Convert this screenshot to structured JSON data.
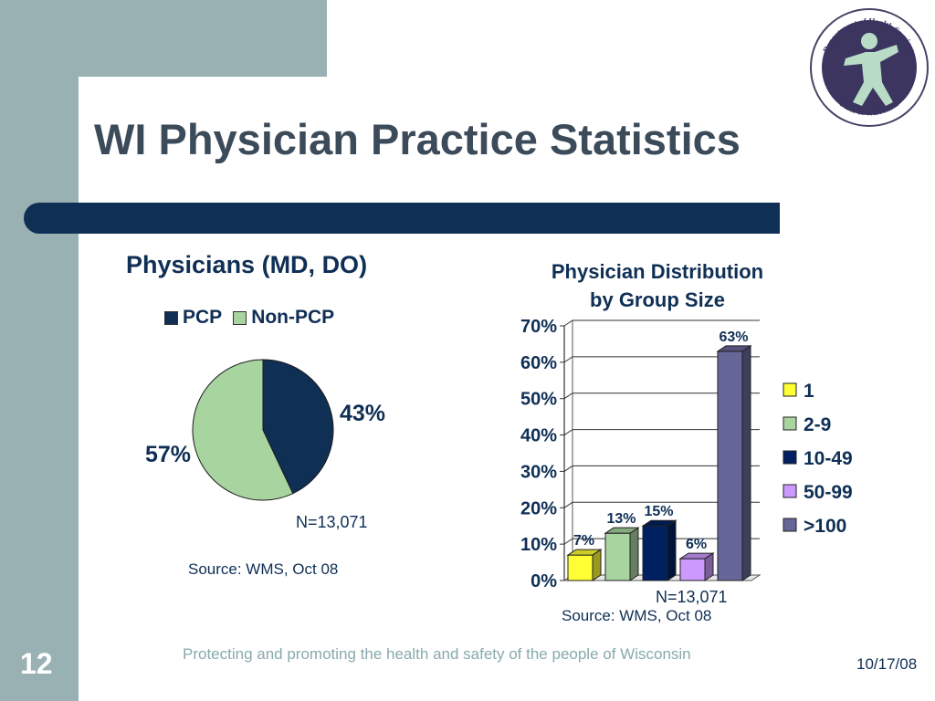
{
  "slide": {
    "title": "WI Physician Practice Statistics",
    "number": "12",
    "footer": "Protecting and promoting the health and safety of the people of Wisconsin",
    "date": "10/17/08"
  },
  "logo": {
    "top_text": "Department of Health Services",
    "bottom_text": "State of Wisconsin"
  },
  "pie": {
    "note": "N=13,071",
    "source": "Source: WMS, Oct 08"
  },
  "bar": {
    "note": "N=13,071",
    "source": "Source: WMS, Oct 08"
  },
  "colors": {
    "navy": "#0f2f55",
    "light_green": "#a8d4a0",
    "sidebar": "#99b1b3",
    "yellow": "#ffff33",
    "green": "#a8d4a0",
    "dark_navy": "#002060",
    "lavender": "#cc99ff",
    "slate_purple": "#666699"
  },
  "chart_data": [
    {
      "type": "pie",
      "title": "Physicians (MD, DO)",
      "categories": [
        "PCP",
        "Non-PCP"
      ],
      "values": [
        43,
        57
      ],
      "labels": [
        "43%",
        "57%"
      ],
      "colors": [
        "#0f2f55",
        "#a8d4a0"
      ],
      "legend": "top"
    },
    {
      "type": "bar",
      "title": "Physician Distribution\nby Group Size",
      "categories": [
        "1",
        "2-9",
        "10-49",
        "50-99",
        ">100"
      ],
      "values": [
        7,
        13,
        15,
        6,
        63
      ],
      "labels": [
        "7%",
        "13%",
        "15%",
        "6%",
        "63%"
      ],
      "colors": [
        "#ffff33",
        "#a8d4a0",
        "#002060",
        "#cc99ff",
        "#666699"
      ],
      "ylim": [
        0,
        70
      ],
      "yticks": [
        "0%",
        "10%",
        "20%",
        "30%",
        "40%",
        "50%",
        "60%",
        "70%"
      ],
      "grid": true,
      "legend": "right"
    }
  ]
}
